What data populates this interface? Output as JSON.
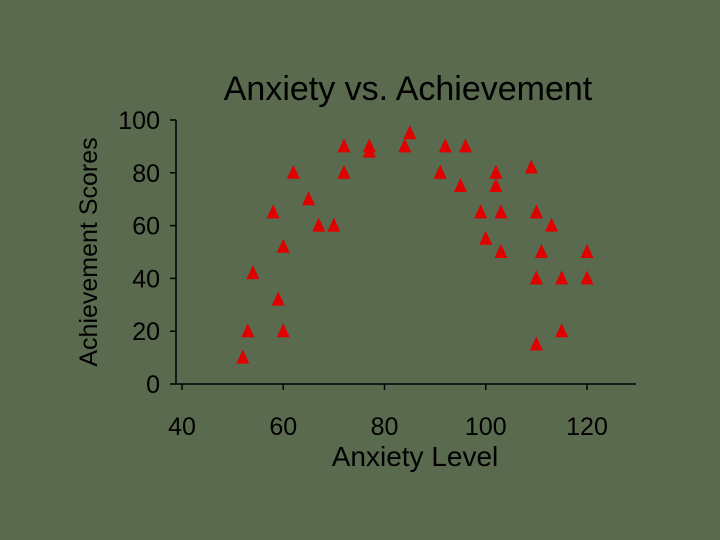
{
  "chart_data": {
    "type": "scatter",
    "title": "Anxiety vs. Achievement",
    "xlabel": "Anxiety Level",
    "ylabel": "Achievement Scores",
    "xlim": [
      40,
      120
    ],
    "ylim": [
      0,
      100
    ],
    "x_ticks": [
      40,
      60,
      80,
      100,
      120
    ],
    "y_ticks": [
      0,
      20,
      40,
      60,
      80,
      100
    ],
    "grid": false,
    "legend": "none",
    "marker": "triangle",
    "marker_color": "#e00000",
    "points": [
      {
        "x": 52,
        "y": 10
      },
      {
        "x": 53,
        "y": 20
      },
      {
        "x": 54,
        "y": 42
      },
      {
        "x": 58,
        "y": 65
      },
      {
        "x": 59,
        "y": 32
      },
      {
        "x": 60,
        "y": 20
      },
      {
        "x": 60,
        "y": 52
      },
      {
        "x": 62,
        "y": 80
      },
      {
        "x": 65,
        "y": 70
      },
      {
        "x": 67,
        "y": 60
      },
      {
        "x": 70,
        "y": 60
      },
      {
        "x": 72,
        "y": 90
      },
      {
        "x": 72,
        "y": 80
      },
      {
        "x": 77,
        "y": 90
      },
      {
        "x": 77,
        "y": 88
      },
      {
        "x": 84,
        "y": 90
      },
      {
        "x": 85,
        "y": 95
      },
      {
        "x": 91,
        "y": 80
      },
      {
        "x": 92,
        "y": 90
      },
      {
        "x": 95,
        "y": 75
      },
      {
        "x": 96,
        "y": 90
      },
      {
        "x": 99,
        "y": 65
      },
      {
        "x": 100,
        "y": 55
      },
      {
        "x": 102,
        "y": 80
      },
      {
        "x": 102,
        "y": 75
      },
      {
        "x": 103,
        "y": 65
      },
      {
        "x": 103,
        "y": 50
      },
      {
        "x": 109,
        "y": 82
      },
      {
        "x": 110,
        "y": 65
      },
      {
        "x": 110,
        "y": 40
      },
      {
        "x": 110,
        "y": 15
      },
      {
        "x": 111,
        "y": 50
      },
      {
        "x": 113,
        "y": 60
      },
      {
        "x": 115,
        "y": 40
      },
      {
        "x": 115,
        "y": 20
      },
      {
        "x": 120,
        "y": 50
      },
      {
        "x": 120,
        "y": 40
      }
    ]
  }
}
